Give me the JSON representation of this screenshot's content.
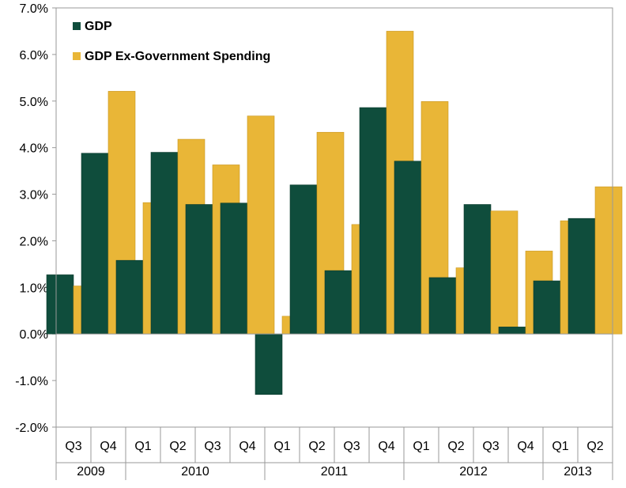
{
  "chart_data": {
    "type": "bar",
    "title": "",
    "xlabel": "",
    "ylabel": "",
    "ylim": [
      -2,
      7
    ],
    "y_ticks": [
      "-2.0%",
      "-1.0%",
      "0.0%",
      "1.0%",
      "2.0%",
      "3.0%",
      "4.0%",
      "5.0%",
      "6.0%",
      "7.0%"
    ],
    "legend_position": "top-left",
    "grid": false,
    "categories": [
      "Q3",
      "Q4",
      "Q1",
      "Q2",
      "Q3",
      "Q4",
      "Q1",
      "Q2",
      "Q3",
      "Q4",
      "Q1",
      "Q2",
      "Q3",
      "Q4",
      "Q1",
      "Q2"
    ],
    "year_groups": [
      {
        "label": "2009",
        "count": 2
      },
      {
        "label": "2010",
        "count": 4
      },
      {
        "label": "2011",
        "count": 4
      },
      {
        "label": "2012",
        "count": 4
      },
      {
        "label": "2013",
        "count": 2
      }
    ],
    "series": [
      {
        "name": "GDP",
        "color": "#0f4d3c",
        "values": [
          1.27,
          3.88,
          1.58,
          3.9,
          2.78,
          2.81,
          -1.3,
          3.2,
          1.36,
          4.86,
          3.71,
          1.21,
          2.78,
          0.15,
          1.14,
          2.48
        ]
      },
      {
        "name": "GDP Ex-Government Spending",
        "color": "#e9b637",
        "values": [
          1.03,
          5.21,
          2.82,
          4.18,
          3.63,
          4.68,
          0.38,
          4.33,
          2.35,
          6.5,
          4.99,
          1.42,
          2.64,
          1.78,
          2.43,
          3.16
        ]
      }
    ]
  }
}
